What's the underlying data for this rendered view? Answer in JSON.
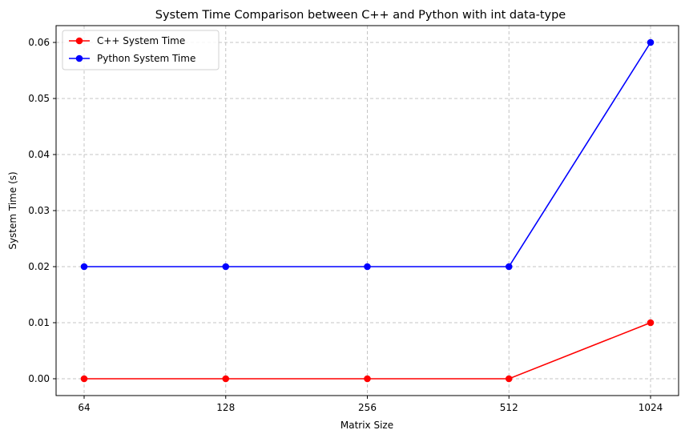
{
  "chart_data": {
    "type": "line",
    "title": "System Time Comparison between C++ and Python with int data-type",
    "xlabel": "Matrix Size",
    "ylabel": "System Time (s)",
    "categories": [
      "64",
      "128",
      "256",
      "512",
      "1024"
    ],
    "series": [
      {
        "name": "C++ System Time",
        "color": "#ff0000",
        "marker": "circle",
        "values": [
          0.0,
          0.0,
          0.0,
          0.0,
          0.01
        ]
      },
      {
        "name": "Python System Time",
        "color": "#0000ff",
        "marker": "circle",
        "values": [
          0.02,
          0.02,
          0.02,
          0.02,
          0.06
        ]
      }
    ],
    "yticks": [
      "0.00",
      "0.01",
      "0.02",
      "0.03",
      "0.04",
      "0.05",
      "0.06"
    ],
    "ylim": [
      -0.003,
      0.063
    ],
    "grid": true,
    "legend_position": "top-left"
  }
}
